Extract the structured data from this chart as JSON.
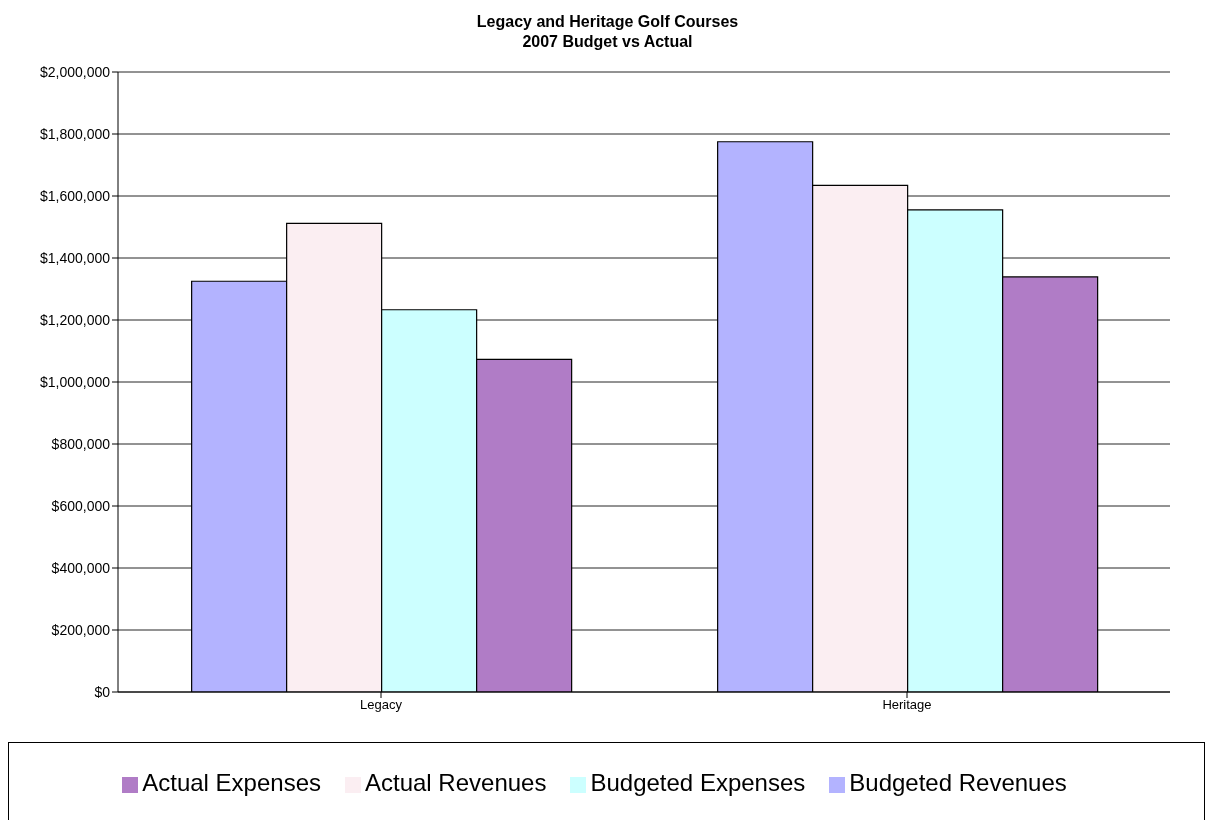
{
  "chart_data": {
    "type": "bar",
    "title": "Legacy and Heritage Golf Courses\n2007 Budget vs Actual",
    "categories": [
      "Legacy",
      "Heritage"
    ],
    "series": [
      {
        "name": "Budgeted Revenues",
        "color": "#b3b3ff",
        "values": [
          1325000,
          1775000
        ]
      },
      {
        "name": "Actual Revenues",
        "color": "#fbeef2",
        "values": [
          1512000,
          1634000
        ]
      },
      {
        "name": "Budgeted Expenses",
        "color": "#ccffff",
        "values": [
          1233000,
          1555000
        ]
      },
      {
        "name": "Actual Expenses",
        "color": "#b07cc6",
        "values": [
          1073000,
          1339000
        ]
      }
    ],
    "ylim": [
      0,
      2000000
    ],
    "yticks": [
      {
        "value": 0,
        "label": "$0"
      },
      {
        "value": 200000,
        "label": "$200,000"
      },
      {
        "value": 400000,
        "label": "$400,000"
      },
      {
        "value": 600000,
        "label": "$600,000"
      },
      {
        "value": 800000,
        "label": "$800,000"
      },
      {
        "value": 1000000,
        "label": "$1,000,000"
      },
      {
        "value": 1200000,
        "label": "$1,200,000"
      },
      {
        "value": 1400000,
        "label": "$1,400,000"
      },
      {
        "value": 1600000,
        "label": "$1,600,000"
      },
      {
        "value": 1800000,
        "label": "$1,800,000"
      },
      {
        "value": 2000000,
        "label": "$2,000,000"
      }
    ],
    "grid": "y",
    "legend": "bottom"
  }
}
